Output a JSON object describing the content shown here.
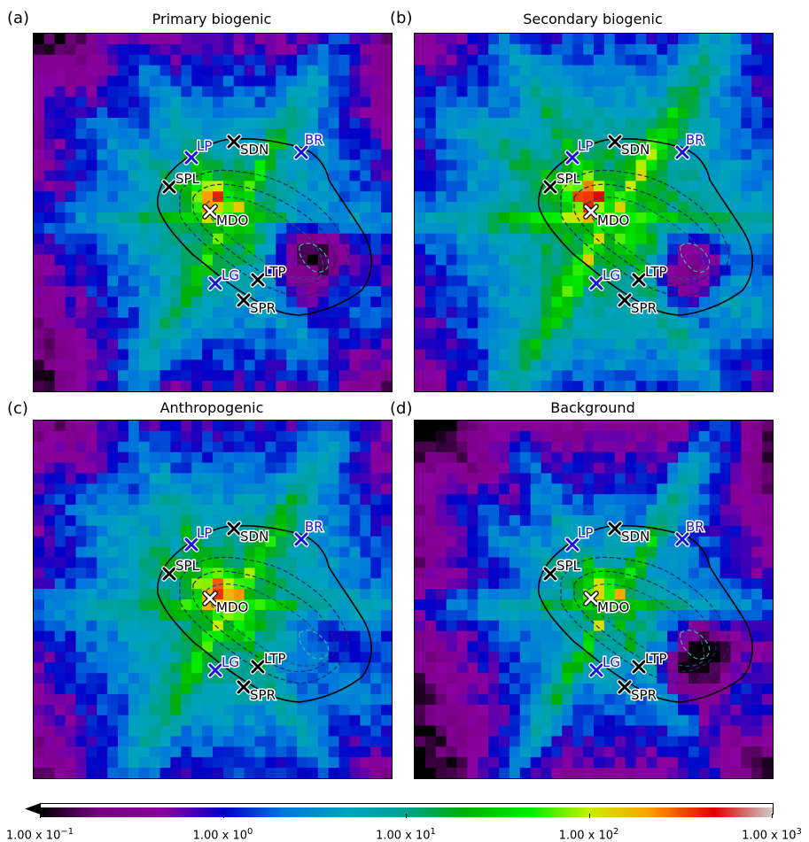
{
  "panels": [
    {
      "letter": "(a)",
      "title": "Primary biogenic",
      "scene": "primary"
    },
    {
      "letter": "(b)",
      "title": "Secondary biogenic",
      "scene": "secondary"
    },
    {
      "letter": "(c)",
      "title": "Anthropogenic",
      "scene": "anthro"
    },
    {
      "letter": "(d)",
      "title": "Background",
      "scene": "background"
    }
  ],
  "colorbar": {
    "scale": "log",
    "range": [
      0.1,
      1000
    ],
    "colormap": "nipy_spectral",
    "extend": "min",
    "ticks": [
      {
        "mantissa": "1.00 x 10",
        "exp": "−1",
        "value": 0.1
      },
      {
        "mantissa": "1.00 x 10",
        "exp": "0",
        "value": 1
      },
      {
        "mantissa": "1.00 x 10",
        "exp": "1",
        "value": 10
      },
      {
        "mantissa": "1.00 x 10",
        "exp": "2",
        "value": 100
      },
      {
        "mantissa": "1.00 x 10",
        "exp": "3",
        "value": 1000
      }
    ]
  },
  "sites": [
    {
      "label": "LP",
      "color": "#1b14d6",
      "marker": "blue"
    },
    {
      "label": "SDN",
      "color": "#000000",
      "marker": "black"
    },
    {
      "label": "BR",
      "color": "#1b14d6",
      "marker": "blue"
    },
    {
      "label": "SPL",
      "color": "#000000",
      "marker": "black"
    },
    {
      "label": "MDO",
      "color": "#000000",
      "marker": "white"
    },
    {
      "label": "LG",
      "color": "#1b14d6",
      "marker": "blue"
    },
    {
      "label": "LTP",
      "color": "#000000",
      "marker": "black"
    },
    {
      "label": "SPR",
      "color": "#000000",
      "marker": "black"
    }
  ]
}
